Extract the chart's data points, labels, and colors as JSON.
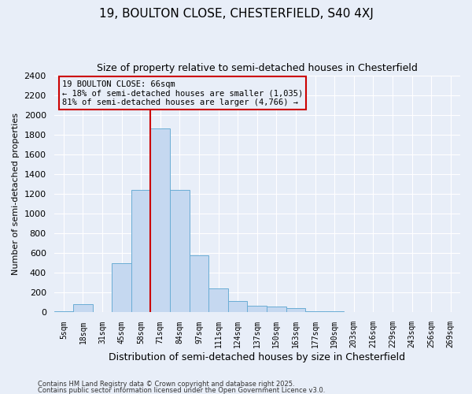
{
  "title": "19, BOULTON CLOSE, CHESTERFIELD, S40 4XJ",
  "subtitle": "Size of property relative to semi-detached houses in Chesterfield",
  "xlabel": "Distribution of semi-detached houses by size in Chesterfield",
  "ylabel": "Number of semi-detached properties",
  "footnote1": "Contains HM Land Registry data © Crown copyright and database right 2025.",
  "footnote2": "Contains public sector information licensed under the Open Government Licence v3.0.",
  "bar_labels": [
    "5sqm",
    "18sqm",
    "31sqm",
    "45sqm",
    "58sqm",
    "71sqm",
    "84sqm",
    "97sqm",
    "111sqm",
    "124sqm",
    "137sqm",
    "150sqm",
    "163sqm",
    "177sqm",
    "190sqm",
    "203sqm",
    "216sqm",
    "229sqm",
    "243sqm",
    "256sqm",
    "269sqm"
  ],
  "bar_values": [
    10,
    80,
    0,
    500,
    1240,
    1860,
    1240,
    575,
    240,
    115,
    70,
    60,
    40,
    10,
    10,
    0,
    0,
    0,
    0,
    0,
    0
  ],
  "bar_color": "#c5d8f0",
  "bar_edgecolor": "#6aadd5",
  "ylim": [
    0,
    2400
  ],
  "yticks": [
    0,
    200,
    400,
    600,
    800,
    1000,
    1200,
    1400,
    1600,
    1800,
    2000,
    2200,
    2400
  ],
  "vline_color": "#cc0000",
  "annotation_title": "19 BOULTON CLOSE: 66sqm",
  "annotation_line1": "← 18% of semi-detached houses are smaller (1,035)",
  "annotation_line2": "81% of semi-detached houses are larger (4,766) →",
  "annotation_box_color": "#cc0000",
  "bg_color": "#e8eef8",
  "grid_color": "#ffffff"
}
